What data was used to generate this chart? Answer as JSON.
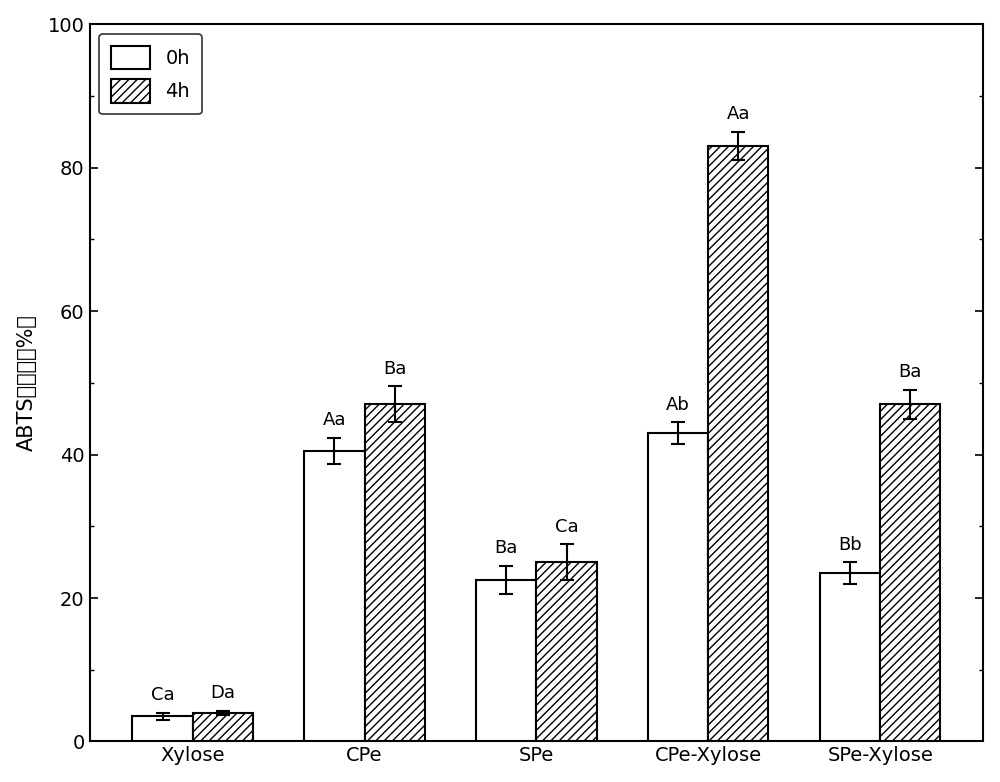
{
  "categories": [
    "Xylose",
    "CPe",
    "SPe",
    "CPe-Xylose",
    "SPe-Xylose"
  ],
  "values_0h": [
    3.5,
    40.5,
    22.5,
    43.0,
    23.5
  ],
  "values_4h": [
    4.0,
    47.0,
    25.0,
    83.0,
    47.0
  ],
  "errors_0h": [
    0.5,
    1.8,
    2.0,
    1.5,
    1.5
  ],
  "errors_4h": [
    0.3,
    2.5,
    2.5,
    2.0,
    2.0
  ],
  "labels_0h": [
    "Ca",
    "Aa",
    "Ba",
    "Ab",
    "Bb"
  ],
  "labels_4h": [
    "Da",
    "Ba",
    "Ca",
    "Aa",
    "Ba"
  ],
  "ylabel_prefix": "ABTS",
  "ylabel_chinese": "清除率",
  "ylabel_suffix": "(%)",
  "ylim": [
    0,
    100
  ],
  "yticks": [
    0,
    20,
    40,
    60,
    80,
    100
  ],
  "legend_0h": "0h",
  "legend_4h": "4h",
  "bar_width": 0.35,
  "background_color": "#ffffff",
  "bar_color_0h": "#ffffff",
  "bar_color_4h": "#ffffff",
  "bar_edgecolor": "#000000",
  "hatch_4h": "////",
  "figsize": [
    10.0,
    7.82
  ],
  "dpi": 100
}
